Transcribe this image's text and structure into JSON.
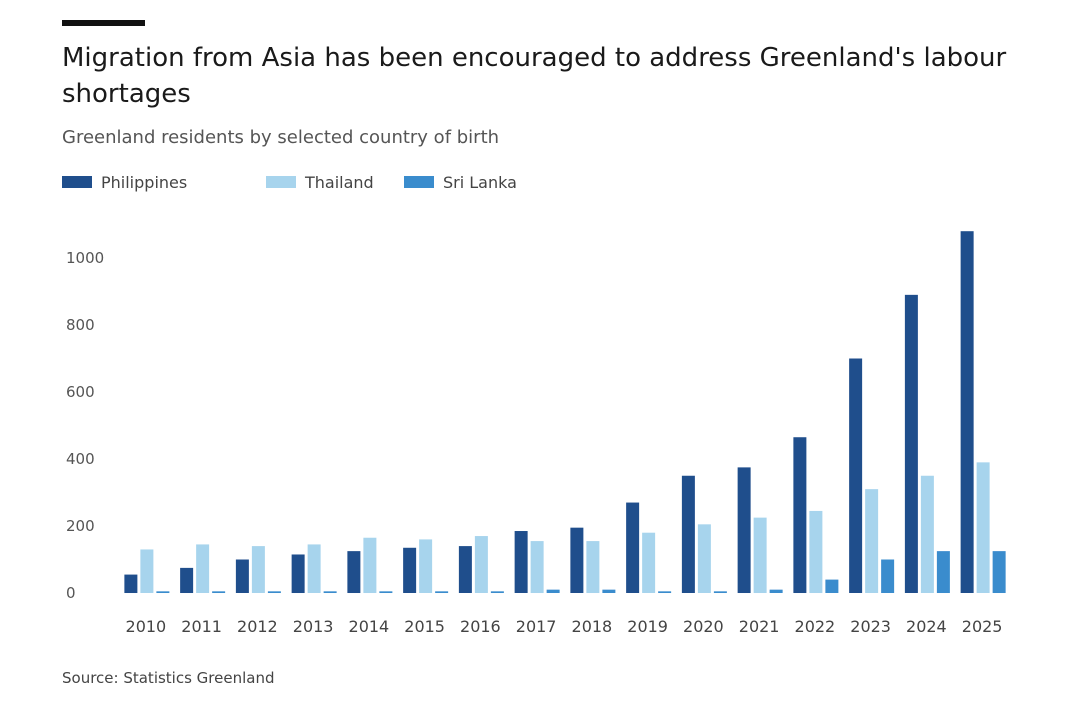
{
  "header": {
    "title": "Migration from Asia has been encouraged to address Greenland's labour shortages",
    "subtitle": "Greenland residents by selected country of birth"
  },
  "footer": {
    "source": "Source: Statistics Greenland"
  },
  "colors": {
    "philippines": "#1f4e8c",
    "thailand": "#a7d4ed",
    "sri_lanka": "#3a8ccd",
    "top_rule": "#111111"
  },
  "chart_data": {
    "type": "bar",
    "title": "Migration from Asia has been encouraged to address Greenland's labour shortages",
    "subtitle": "Greenland residents by selected country of birth",
    "xlabel": "",
    "ylabel": "",
    "ylim": [
      0,
      1100
    ],
    "yticks": [
      0,
      200,
      400,
      600,
      800,
      1000
    ],
    "grid": false,
    "legend": "top-left",
    "categories": [
      "2010",
      "2011",
      "2012",
      "2013",
      "2014",
      "2015",
      "2016",
      "2017",
      "2018",
      "2019",
      "2020",
      "2021",
      "2022",
      "2023",
      "2024",
      "2025"
    ],
    "series": [
      {
        "name": "Philippines",
        "color": "#1f4e8c",
        "values": [
          55,
          75,
          100,
          115,
          125,
          135,
          140,
          185,
          195,
          270,
          350,
          375,
          465,
          700,
          890,
          1080
        ]
      },
      {
        "name": "Thailand",
        "color": "#a7d4ed",
        "values": [
          130,
          145,
          140,
          145,
          165,
          160,
          170,
          155,
          155,
          180,
          205,
          225,
          245,
          310,
          350,
          390
        ]
      },
      {
        "name": "Sri Lanka",
        "color": "#3a8ccd",
        "values": [
          5,
          5,
          5,
          5,
          5,
          5,
          5,
          10,
          10,
          5,
          5,
          10,
          40,
          100,
          125,
          125
        ]
      }
    ]
  }
}
